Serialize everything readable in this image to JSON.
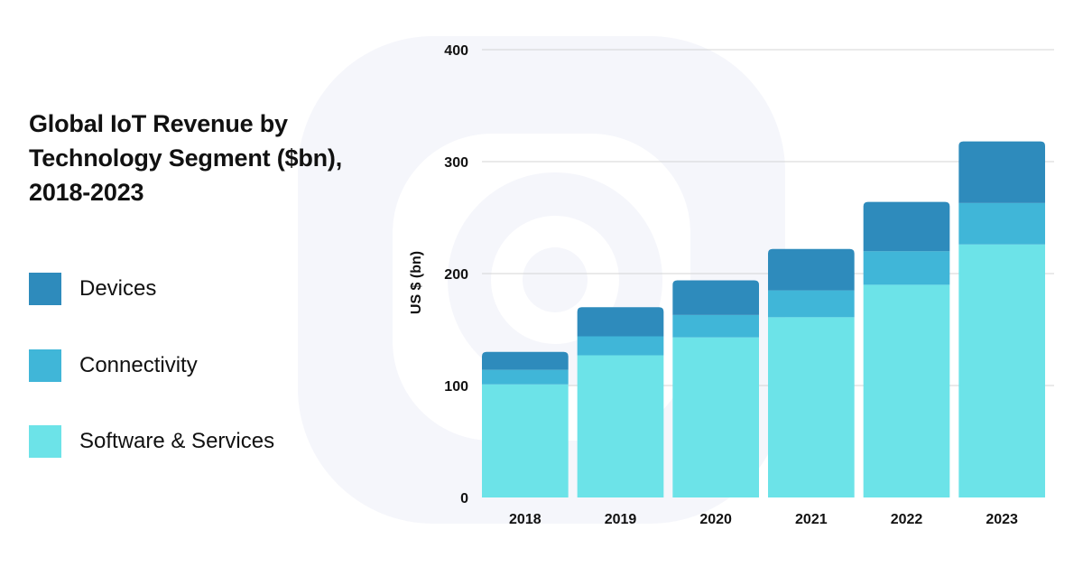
{
  "colors": {
    "devices": "#2e8bbc",
    "connectivity": "#40b6d8",
    "software": "#6ce3e8",
    "grid": "#d4d4d4",
    "watermark": "#f5f6fb"
  },
  "legend": [
    {
      "label": "Devices",
      "color": "#2e8bbc"
    },
    {
      "label": "Connectivity",
      "color": "#40b6d8"
    },
    {
      "label": "Software & Services",
      "color": "#6ce3e8"
    }
  ],
  "chart_data": {
    "type": "bar",
    "stacked": true,
    "title": "Global IoT Revenue by Technology Segment ($bn), 2018-2023",
    "title_lines": [
      "Global IoT Revenue by",
      "Technology Segment ($bn),",
      "2018-2023"
    ],
    "xlabel": "",
    "ylabel": "US $ (bn)",
    "ylim": [
      0,
      400
    ],
    "yticks": [
      0,
      100,
      200,
      300,
      400
    ],
    "grid": true,
    "categories": [
      "2018",
      "2019",
      "2020",
      "2021",
      "2022",
      "2023"
    ],
    "series": [
      {
        "name": "Software & Services",
        "key": "software",
        "values": [
          101,
          127,
          143,
          161,
          190,
          226
        ]
      },
      {
        "name": "Connectivity",
        "key": "connectivity",
        "values": [
          13,
          17,
          20,
          24,
          30,
          37
        ]
      },
      {
        "name": "Devices",
        "key": "devices",
        "values": [
          16,
          26,
          31,
          37,
          44,
          55
        ]
      }
    ]
  }
}
